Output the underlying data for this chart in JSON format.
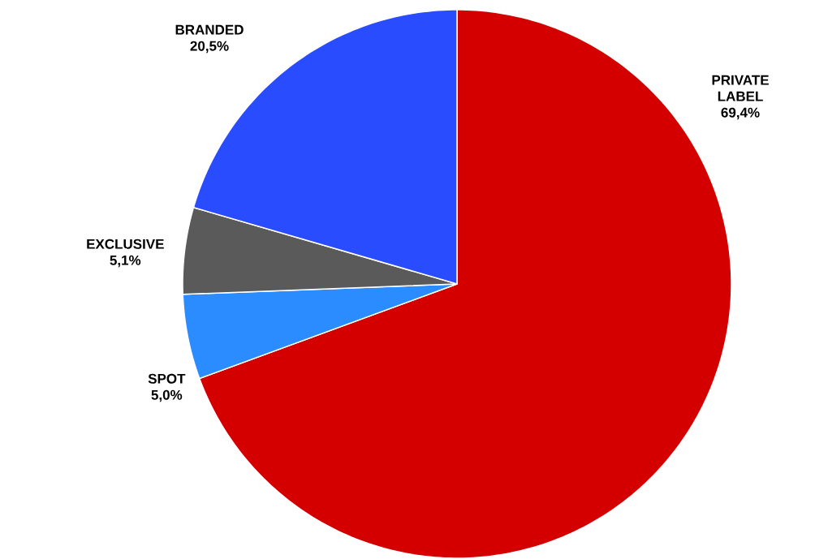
{
  "chart_data": {
    "type": "pie",
    "categories": [
      "PRIVATE LABEL",
      "SPOT",
      "EXCLUSIVE",
      "BRANDED"
    ],
    "values": [
      69.4,
      5.0,
      5.1,
      20.5
    ],
    "value_labels": [
      "69,4%",
      "5,0%",
      "5,1%",
      "20,5%"
    ],
    "colors": [
      "#d40000",
      "#2a8cff",
      "#5a5a5a",
      "#2a4cff"
    ]
  }
}
